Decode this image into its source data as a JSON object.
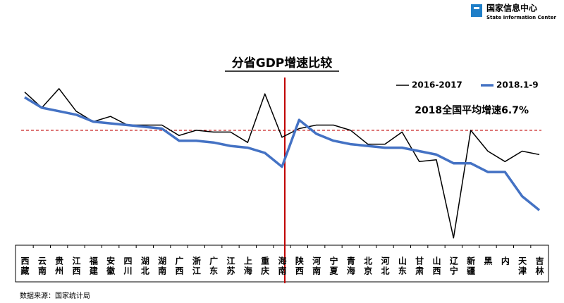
{
  "header": {
    "org_cn": "国家信息中心",
    "org_en": "State Information Center"
  },
  "chart_data": {
    "type": "line",
    "title": "分省GDP增速比较",
    "categories": [
      "西藏",
      "云南",
      "贵州",
      "江西",
      "福建",
      "安徽",
      "四川",
      "湖北",
      "湖南",
      "广西",
      "浙江",
      "广东",
      "江苏",
      "上海",
      "重庆",
      "海南",
      "陕西",
      "河南",
      "宁夏",
      "青海",
      "北京",
      "河北",
      "山东",
      "甘肃",
      "山西",
      "辽宁",
      "新疆",
      "黑",
      "内",
      "天津",
      "吉林"
    ],
    "series": [
      {
        "name": "2016-2017",
        "color": "#000000",
        "width": 1.5,
        "values": [
          8.9,
          8.0,
          9.1,
          7.8,
          7.2,
          7.5,
          7.0,
          7.0,
          7.0,
          6.4,
          6.7,
          6.6,
          6.6,
          6.0,
          8.8,
          6.3,
          6.8,
          7.0,
          7.0,
          6.7,
          5.9,
          5.9,
          6.6,
          4.9,
          5.0,
          0.5,
          6.7,
          5.5,
          4.9,
          5.5,
          5.3
        ]
      },
      {
        "name": "2018.1-9",
        "color": "#4472c4",
        "width": 3.5,
        "values": [
          8.6,
          8.0,
          7.8,
          7.6,
          7.2,
          7.1,
          7.0,
          6.9,
          6.8,
          6.1,
          6.1,
          6.0,
          5.8,
          5.7,
          5.4,
          4.6,
          7.3,
          6.5,
          6.1,
          5.9,
          5.8,
          5.7,
          5.7,
          5.5,
          5.3,
          4.8,
          4.8,
          4.3,
          4.3,
          2.9,
          2.1
        ]
      }
    ],
    "reference": {
      "value": 6.7,
      "label": "2018全国平均增速6.7%",
      "color": "#c00000"
    },
    "ylim": [
      0,
      11
    ]
  },
  "source": "数据来源：国家统计局"
}
